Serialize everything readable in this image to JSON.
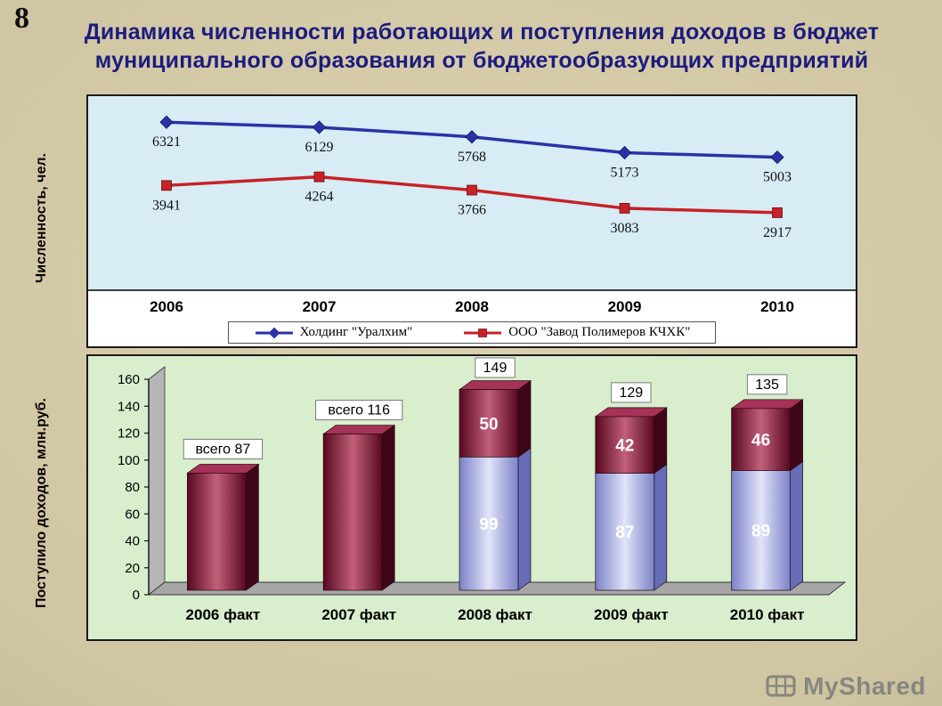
{
  "slide": {
    "number": "8",
    "title_line1": "Динамика численности работающих и поступления доходов  в бюджет",
    "title_line2": "муниципального образования от бюджетообразующих предприятий"
  },
  "top_chart": {
    "axis_label": "Численность, чел."
  },
  "bottom_chart": {
    "axis_label": "Поступило доходов, млн.руб."
  },
  "chart_data": [
    {
      "type": "line",
      "title": "Численность, чел.",
      "categories": [
        "2006",
        "2007",
        "2008",
        "2009",
        "2010"
      ],
      "series": [
        {
          "name": "Холдинг \"Уралхим\"",
          "values": [
            6321,
            6129,
            5768,
            5173,
            5003
          ],
          "color": "#2b32a8",
          "marker": "diamond"
        },
        {
          "name": "ООО \"Завод Полимеров КЧХК\"",
          "values": [
            3941,
            4264,
            3766,
            3083,
            2917
          ],
          "color": "#c62228",
          "marker": "square"
        }
      ],
      "ylim": [
        0,
        7300
      ],
      "grid": false,
      "legend_position": "bottom",
      "plot_bg": "#d7ecf5"
    },
    {
      "type": "bar",
      "title": "Поступило доходов, млн.руб.",
      "categories": [
        "2006 факт",
        "2007 факт",
        "2008 факт",
        "2009 факт",
        "2010 факт"
      ],
      "series": [
        {
          "name": "нижний сегмент (сиреневый)",
          "values": [
            0,
            0,
            99,
            87,
            89
          ],
          "color": "#9ba0d8"
        },
        {
          "name": "верхний сегмент (бордовый)",
          "values": [
            87,
            116,
            50,
            42,
            46
          ],
          "color": "#8b1538"
        }
      ],
      "totals": [
        87,
        116,
        149,
        129,
        135
      ],
      "total_labels": [
        "всего 87",
        "всего 116",
        "149",
        "129",
        "135"
      ],
      "ylim": [
        0,
        160
      ],
      "ytick_step": 20,
      "style": "3d",
      "plot_bg": "#d8eecd",
      "floor_color": "#a6a6a6"
    }
  ],
  "watermark": {
    "text": "MyShared"
  }
}
